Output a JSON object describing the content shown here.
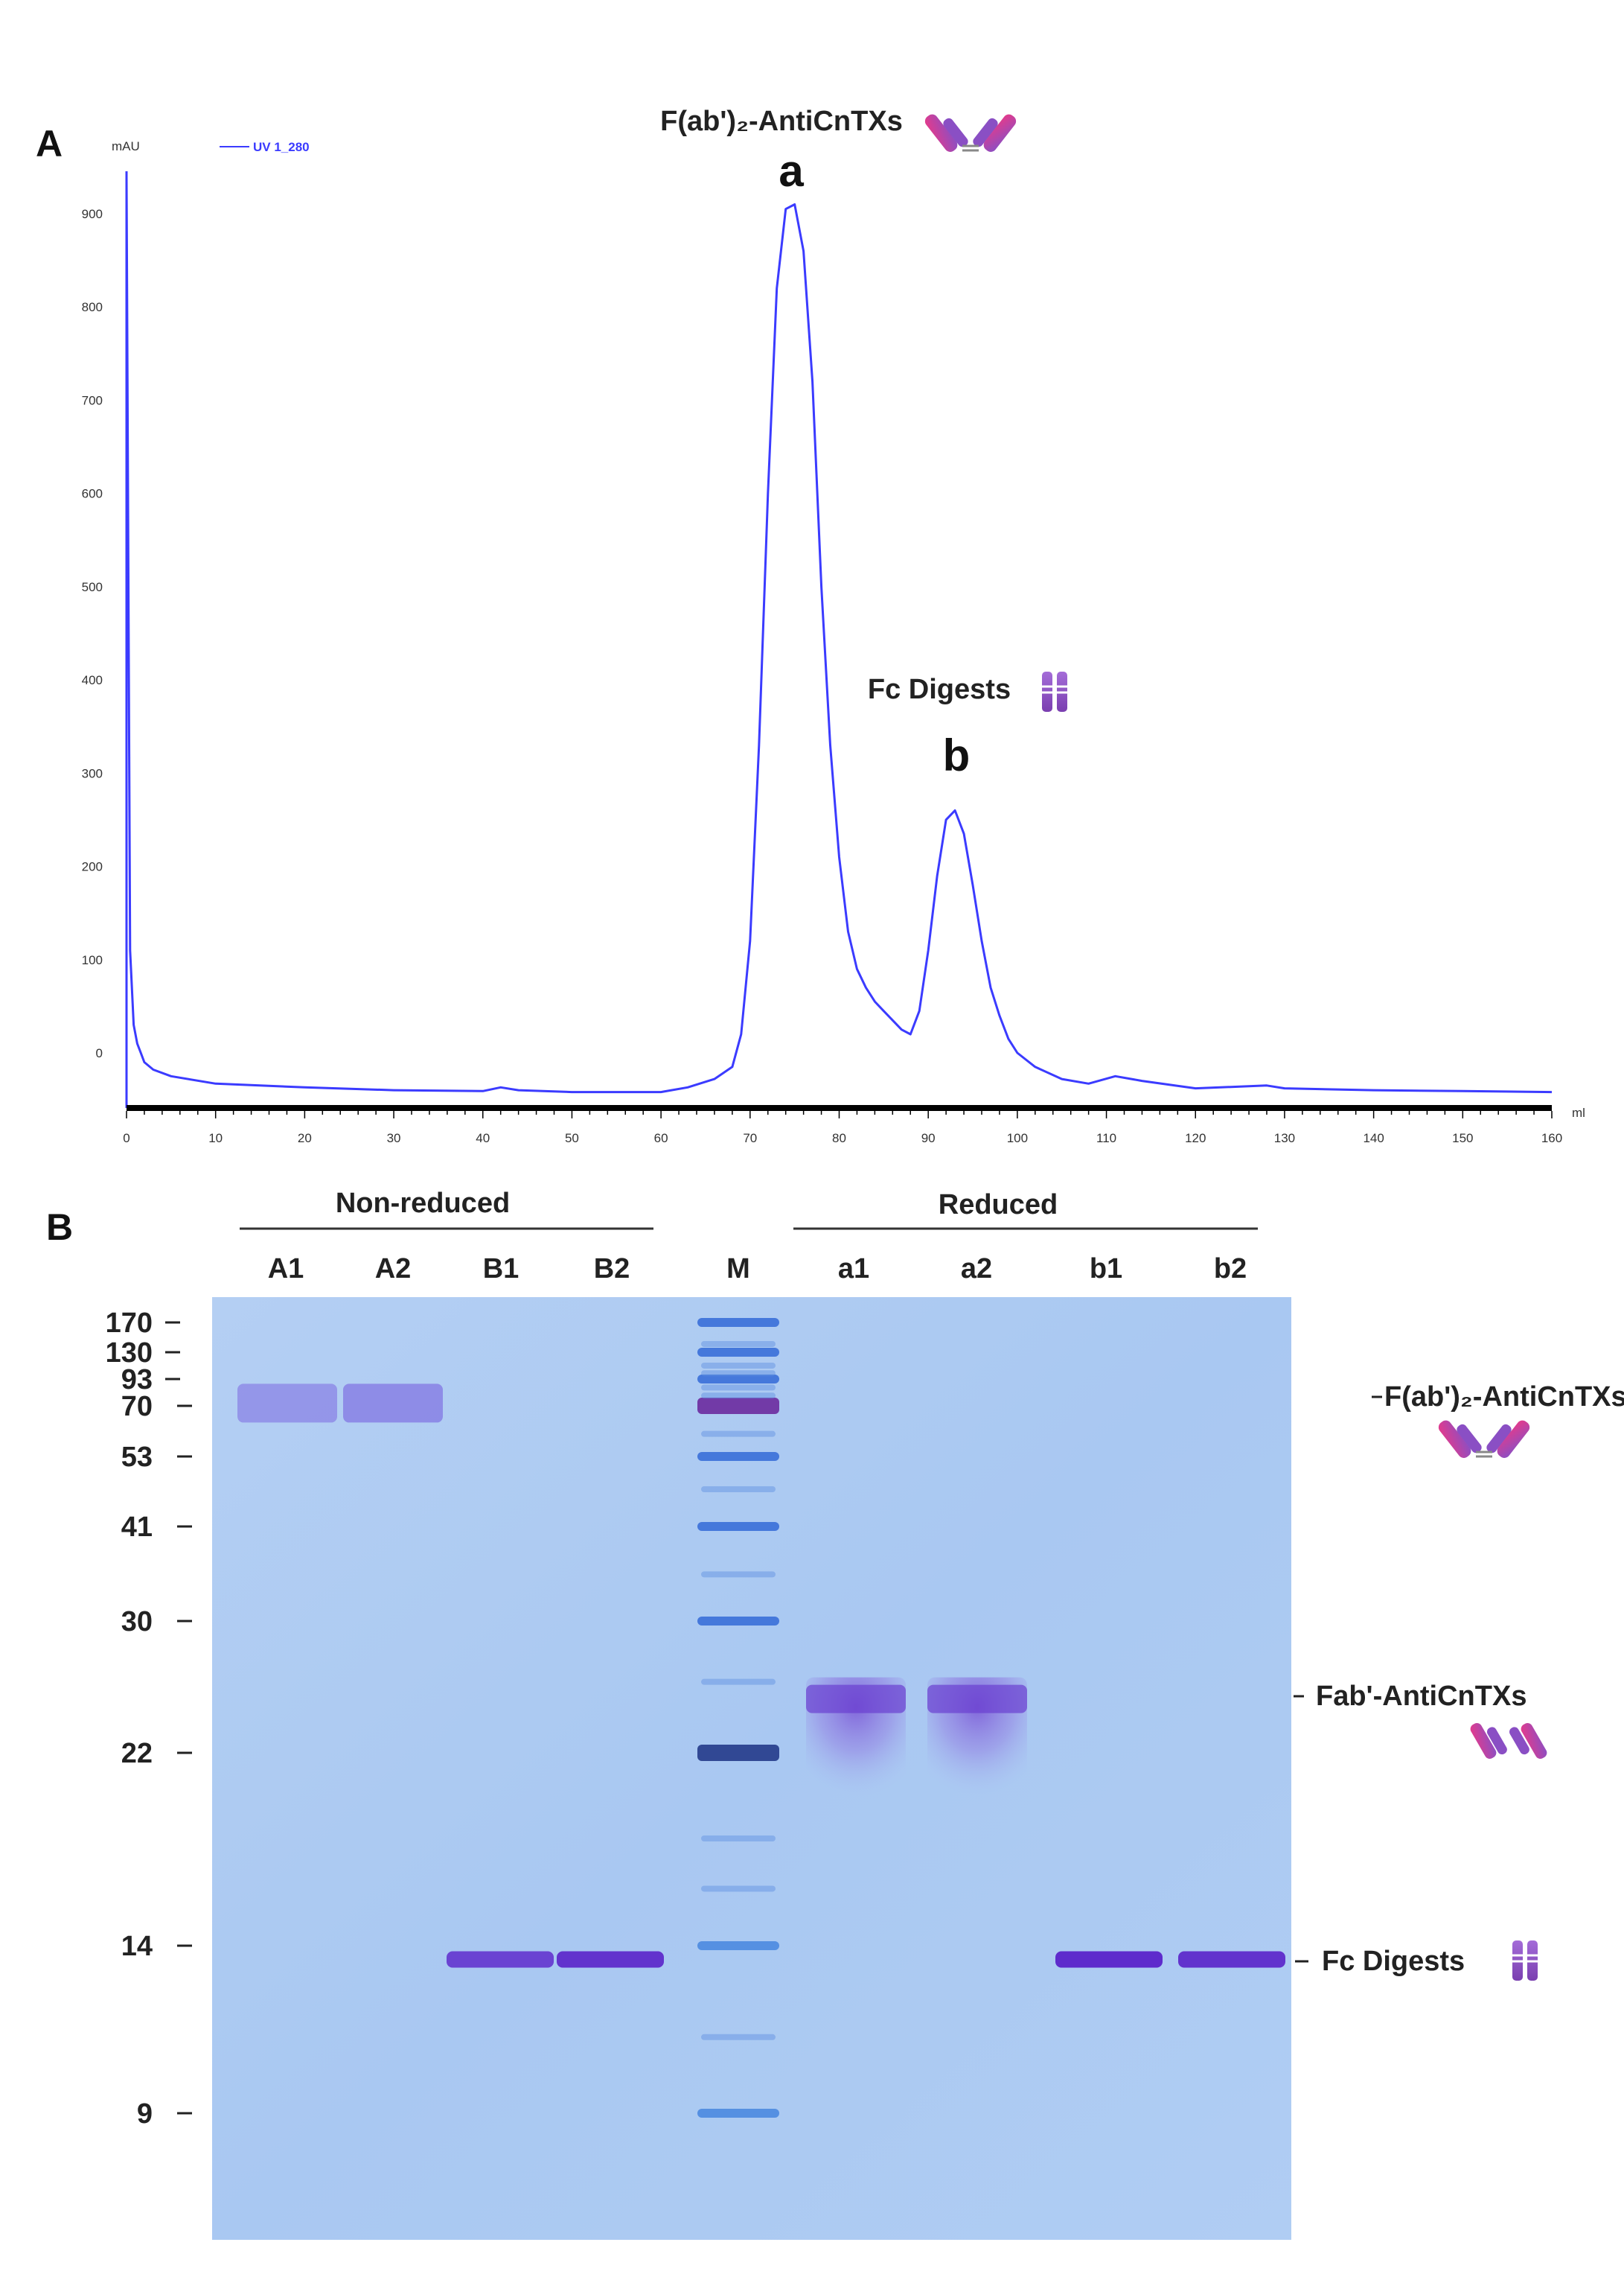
{
  "panel_a_label": "A",
  "panel_b_label": "B",
  "chart_data": [
    {
      "type": "line",
      "ylabel": "mAU",
      "xlabel": "ml",
      "legend": [
        {
          "name": "UV 1_280",
          "color": "#3b3bff"
        }
      ],
      "legend_position": "top-left",
      "grid": false,
      "x_ticks": [
        0,
        10,
        20,
        30,
        40,
        50,
        60,
        70,
        80,
        90,
        100,
        110,
        120,
        130,
        140,
        150,
        160
      ],
      "y_ticks": [
        0,
        100,
        200,
        300,
        400,
        500,
        600,
        700,
        800,
        900
      ],
      "xlim": [
        0,
        160
      ],
      "ylim": [
        -60,
        950
      ],
      "series": [
        {
          "name": "UV 1_280",
          "color": "#3b3bff",
          "x": [
            0,
            0.4,
            0.8,
            1.2,
            1.6,
            2,
            3,
            5,
            10,
            20,
            30,
            40,
            42,
            44,
            50,
            60,
            63,
            66,
            68,
            69,
            70,
            71,
            72,
            73,
            74,
            75,
            76,
            77,
            78,
            79,
            80,
            81,
            82,
            83,
            84,
            85,
            86,
            87,
            88,
            89,
            90,
            91,
            92,
            93,
            94,
            95,
            96,
            97,
            98,
            99,
            100,
            102,
            105,
            108,
            111,
            114,
            120,
            128,
            130,
            140,
            150,
            160
          ],
          "y": [
            940,
            110,
            30,
            10,
            0,
            -10,
            -18,
            -25,
            -33,
            -37,
            -40,
            -41,
            -37,
            -40,
            -42,
            -42,
            -37,
            -28,
            -15,
            20,
            120,
            330,
            600,
            820,
            905,
            910,
            860,
            720,
            500,
            330,
            210,
            130,
            90,
            70,
            55,
            45,
            35,
            25,
            20,
            45,
            110,
            190,
            250,
            260,
            235,
            180,
            120,
            70,
            40,
            15,
            0,
            -15,
            -28,
            -33,
            -25,
            -30,
            -38,
            -35,
            -38,
            -40,
            -41,
            -42
          ]
        }
      ],
      "annotations": [
        {
          "letter": "a",
          "name": "F(ab')₂-AntiCnTXs",
          "x": 75
        },
        {
          "letter": "b",
          "name": "Fc Digests",
          "x": 93
        }
      ]
    },
    {
      "type": "table",
      "group_labels": [
        "Non-reduced",
        "Reduced"
      ],
      "lanes": [
        "A1",
        "A2",
        "B1",
        "B2",
        "M",
        "a1",
        "a2",
        "b1",
        "b2"
      ],
      "mw_markers_kda": [
        170,
        130,
        93,
        70,
        53,
        41,
        30,
        22,
        14,
        9
      ],
      "bands": [
        {
          "lane": "A1",
          "kda": 72,
          "intensity": 0.55
        },
        {
          "lane": "A2",
          "kda": 72,
          "intensity": 0.65
        },
        {
          "lane": "B1",
          "kda": 13.5,
          "intensity": 0.8
        },
        {
          "lane": "B2",
          "kda": 13.5,
          "intensity": 0.9
        },
        {
          "lane": "a1",
          "kda": 24.5,
          "intensity": 0.7
        },
        {
          "lane": "a2",
          "kda": 24.5,
          "intensity": 0.7
        },
        {
          "lane": "b1",
          "kda": 13.5,
          "intensity": 0.95
        },
        {
          "lane": "b2",
          "kda": 13.5,
          "intensity": 0.9
        }
      ],
      "band_labels": [
        "F(ab')₂-AntiCnTXs",
        "Fab'-AntiCnTXs",
        "Fc Digests"
      ]
    }
  ]
}
